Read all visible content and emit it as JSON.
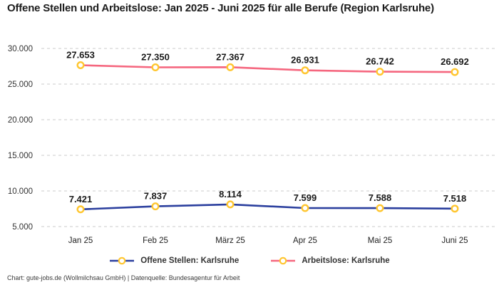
{
  "title": "Offene Stellen und Arbeitslose: Jan 2025 - Juni 2025 für alle Berufe (Region Karlsruhe)",
  "footer": "Chart: gute-jobs.de (Wollmilchsau GmbH) | Datenquelle: Bundesagentur für Arbeit",
  "chart_data": {
    "type": "line",
    "title": "Offene Stellen und Arbeitslose: Jan 2025 - Juni 2025 für alle Berufe (Region Karlsruhe)",
    "categories": [
      "Jan 25",
      "Feb 25",
      "März 25",
      "Apr 25",
      "Mai 25",
      "Juni 25"
    ],
    "series": [
      {
        "name": "Offene Stellen: Karlsruhe",
        "color": "#2B3F9E",
        "values": [
          7421,
          7837,
          8114,
          7599,
          7588,
          7518
        ],
        "labels": [
          "7.421",
          "7.837",
          "8.114",
          "7.599",
          "7.588",
          "7.518"
        ]
      },
      {
        "name": "Arbeitslose: Karlsruhe",
        "color": "#F5677F",
        "values": [
          27653,
          27350,
          27367,
          26931,
          26742,
          26692
        ],
        "labels": [
          "27.653",
          "27.350",
          "27.367",
          "26.931",
          "26.742",
          "26.692"
        ]
      }
    ],
    "xlabel": "",
    "ylabel": "",
    "ylim": [
      5000,
      30000
    ],
    "yticks": [
      30000,
      25000,
      20000,
      15000,
      10000,
      5000
    ],
    "ytick_labels": [
      "30.000",
      "25.000",
      "20.000",
      "15.000",
      "10.000",
      "5.000"
    ],
    "grid": "horizontal-dashed",
    "grid_color": "#CBCBCB",
    "legend_position": "bottom",
    "marker": {
      "shape": "circle",
      "stroke": "#FFC62F",
      "fill": "#FFFFFF"
    }
  }
}
